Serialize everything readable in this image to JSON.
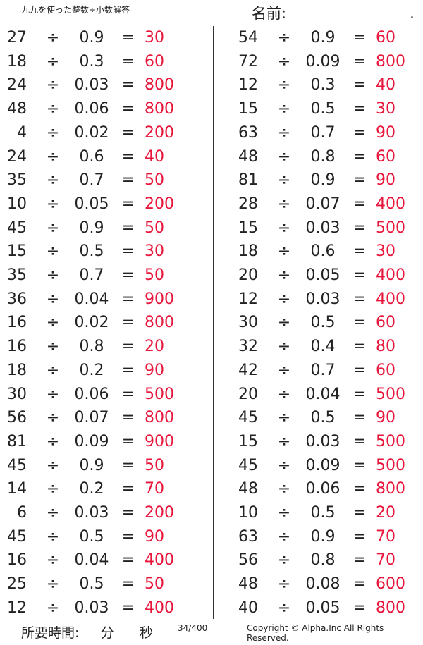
{
  "header": {
    "title": "九九を使った整数÷小数解答",
    "name_label": "名前:",
    "name_end": "."
  },
  "footer": {
    "time_label": "所要時間:",
    "minutes": "分",
    "seconds": "秒",
    "page": "34/400",
    "copyright": "Copyright © Alpha.Inc All Rights Reserved."
  },
  "symbols": {
    "divide": "÷",
    "equals": "="
  },
  "colors": {
    "answer": "#e8163b"
  },
  "left": [
    [
      "27",
      "0.9",
      "30"
    ],
    [
      "18",
      "0.3",
      "60"
    ],
    [
      "24",
      "0.03",
      "800"
    ],
    [
      "48",
      "0.06",
      "800"
    ],
    [
      "4",
      "0.02",
      "200"
    ],
    [
      "24",
      "0.6",
      "40"
    ],
    [
      "35",
      "0.7",
      "50"
    ],
    [
      "10",
      "0.05",
      "200"
    ],
    [
      "45",
      "0.9",
      "50"
    ],
    [
      "15",
      "0.5",
      "30"
    ],
    [
      "35",
      "0.7",
      "50"
    ],
    [
      "36",
      "0.04",
      "900"
    ],
    [
      "16",
      "0.02",
      "800"
    ],
    [
      "16",
      "0.8",
      "20"
    ],
    [
      "18",
      "0.2",
      "90"
    ],
    [
      "30",
      "0.06",
      "500"
    ],
    [
      "56",
      "0.07",
      "800"
    ],
    [
      "81",
      "0.09",
      "900"
    ],
    [
      "45",
      "0.9",
      "50"
    ],
    [
      "14",
      "0.2",
      "70"
    ],
    [
      "6",
      "0.03",
      "200"
    ],
    [
      "45",
      "0.5",
      "90"
    ],
    [
      "16",
      "0.04",
      "400"
    ],
    [
      "25",
      "0.5",
      "50"
    ],
    [
      "12",
      "0.03",
      "400"
    ]
  ],
  "right": [
    [
      "54",
      "0.9",
      "60"
    ],
    [
      "72",
      "0.09",
      "800"
    ],
    [
      "12",
      "0.3",
      "40"
    ],
    [
      "15",
      "0.5",
      "30"
    ],
    [
      "63",
      "0.7",
      "90"
    ],
    [
      "48",
      "0.8",
      "60"
    ],
    [
      "81",
      "0.9",
      "90"
    ],
    [
      "28",
      "0.07",
      "400"
    ],
    [
      "15",
      "0.03",
      "500"
    ],
    [
      "18",
      "0.6",
      "30"
    ],
    [
      "20",
      "0.05",
      "400"
    ],
    [
      "12",
      "0.03",
      "400"
    ],
    [
      "30",
      "0.5",
      "60"
    ],
    [
      "32",
      "0.4",
      "80"
    ],
    [
      "42",
      "0.7",
      "60"
    ],
    [
      "20",
      "0.04",
      "500"
    ],
    [
      "45",
      "0.5",
      "90"
    ],
    [
      "15",
      "0.03",
      "500"
    ],
    [
      "45",
      "0.09",
      "500"
    ],
    [
      "48",
      "0.06",
      "800"
    ],
    [
      "10",
      "0.5",
      "20"
    ],
    [
      "63",
      "0.9",
      "70"
    ],
    [
      "56",
      "0.8",
      "70"
    ],
    [
      "48",
      "0.08",
      "600"
    ],
    [
      "40",
      "0.05",
      "800"
    ]
  ]
}
